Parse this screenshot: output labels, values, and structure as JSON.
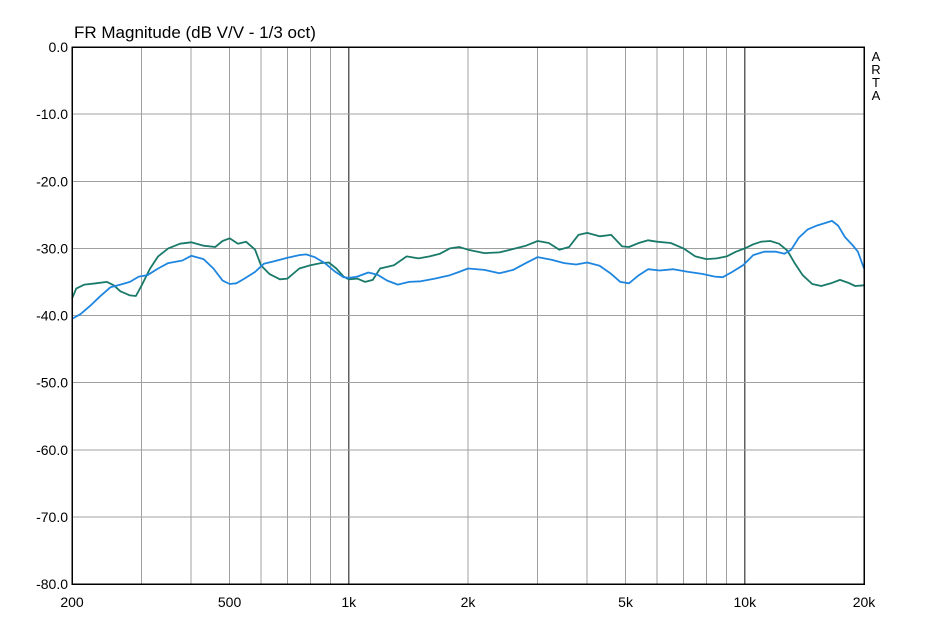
{
  "chart_data": {
    "type": "line",
    "title": "FR Magnitude (dB V/V - 1/3 oct)",
    "brand": "ARTA",
    "xscale": "log",
    "xlim": [
      200,
      20000
    ],
    "ylim": [
      -80,
      0
    ],
    "grid": true,
    "x_ticks": [
      {
        "value": 200,
        "label": "200"
      },
      {
        "value": 500,
        "label": "500"
      },
      {
        "value": 1000,
        "label": "1k"
      },
      {
        "value": 2000,
        "label": "2k"
      },
      {
        "value": 5000,
        "label": "5k"
      },
      {
        "value": 10000,
        "label": "10k"
      },
      {
        "value": 20000,
        "label": "20k"
      }
    ],
    "y_ticks": [
      {
        "value": 0,
        "label": "0.0"
      },
      {
        "value": -10,
        "label": "-10.0"
      },
      {
        "value": -20,
        "label": "-20.0"
      },
      {
        "value": -30,
        "label": "-30.0"
      },
      {
        "value": -40,
        "label": "-40.0"
      },
      {
        "value": -50,
        "label": "-50.0"
      },
      {
        "value": -60,
        "label": "-60.0"
      },
      {
        "value": -70,
        "label": "-70.0"
      },
      {
        "value": -80,
        "label": "-80.0"
      }
    ],
    "series": [
      {
        "color": "#1a7a6a",
        "points": [
          [
            200,
            -37.5
          ],
          [
            205,
            -36.0
          ],
          [
            215,
            -35.4
          ],
          [
            230,
            -35.2
          ],
          [
            245,
            -35.0
          ],
          [
            255,
            -35.5
          ],
          [
            265,
            -36.4
          ],
          [
            280,
            -37.0
          ],
          [
            290,
            -37.1
          ],
          [
            300,
            -35.5
          ],
          [
            315,
            -33.0
          ],
          [
            330,
            -31.2
          ],
          [
            350,
            -30.0
          ],
          [
            375,
            -29.3
          ],
          [
            400,
            -29.1
          ],
          [
            430,
            -29.6
          ],
          [
            460,
            -29.8
          ],
          [
            480,
            -28.9
          ],
          [
            500,
            -28.5
          ],
          [
            525,
            -29.3
          ],
          [
            550,
            -29.0
          ],
          [
            580,
            -30.2
          ],
          [
            600,
            -32.5
          ],
          [
            630,
            -33.8
          ],
          [
            670,
            -34.6
          ],
          [
            700,
            -34.5
          ],
          [
            750,
            -33.0
          ],
          [
            800,
            -32.5
          ],
          [
            850,
            -32.2
          ],
          [
            890,
            -32.1
          ],
          [
            930,
            -33.0
          ],
          [
            970,
            -34.2
          ],
          [
            1000,
            -34.6
          ],
          [
            1050,
            -34.5
          ],
          [
            1100,
            -35.0
          ],
          [
            1150,
            -34.7
          ],
          [
            1200,
            -33.0
          ],
          [
            1300,
            -32.5
          ],
          [
            1400,
            -31.2
          ],
          [
            1500,
            -31.5
          ],
          [
            1600,
            -31.2
          ],
          [
            1700,
            -30.8
          ],
          [
            1800,
            -30.0
          ],
          [
            1900,
            -29.8
          ],
          [
            2000,
            -30.2
          ],
          [
            2200,
            -30.7
          ],
          [
            2400,
            -30.6
          ],
          [
            2600,
            -30.1
          ],
          [
            2800,
            -29.6
          ],
          [
            3000,
            -28.9
          ],
          [
            3200,
            -29.2
          ],
          [
            3400,
            -30.2
          ],
          [
            3600,
            -29.8
          ],
          [
            3800,
            -28.0
          ],
          [
            4000,
            -27.7
          ],
          [
            4300,
            -28.2
          ],
          [
            4600,
            -28.0
          ],
          [
            4900,
            -29.7
          ],
          [
            5100,
            -29.8
          ],
          [
            5400,
            -29.2
          ],
          [
            5700,
            -28.8
          ],
          [
            6000,
            -29.0
          ],
          [
            6500,
            -29.2
          ],
          [
            7000,
            -30.0
          ],
          [
            7500,
            -31.2
          ],
          [
            8000,
            -31.6
          ],
          [
            8500,
            -31.5
          ],
          [
            9000,
            -31.2
          ],
          [
            9500,
            -30.5
          ],
          [
            10000,
            -30.0
          ],
          [
            10500,
            -29.4
          ],
          [
            11000,
            -29.0
          ],
          [
            11600,
            -28.9
          ],
          [
            12200,
            -29.3
          ],
          [
            12800,
            -30.3
          ],
          [
            13400,
            -32.3
          ],
          [
            14000,
            -34.0
          ],
          [
            14800,
            -35.3
          ],
          [
            15600,
            -35.6
          ],
          [
            16500,
            -35.2
          ],
          [
            17400,
            -34.7
          ],
          [
            18200,
            -35.1
          ],
          [
            19000,
            -35.6
          ],
          [
            20000,
            -35.5
          ]
        ]
      },
      {
        "color": "#1f86e0",
        "points": [
          [
            200,
            -40.5
          ],
          [
            210,
            -39.8
          ],
          [
            222,
            -38.6
          ],
          [
            235,
            -37.2
          ],
          [
            250,
            -35.8
          ],
          [
            265,
            -35.4
          ],
          [
            280,
            -35.0
          ],
          [
            295,
            -34.2
          ],
          [
            310,
            -34.0
          ],
          [
            330,
            -33.0
          ],
          [
            350,
            -32.2
          ],
          [
            380,
            -31.8
          ],
          [
            400,
            -31.1
          ],
          [
            430,
            -31.6
          ],
          [
            455,
            -33.0
          ],
          [
            480,
            -34.8
          ],
          [
            500,
            -35.3
          ],
          [
            520,
            -35.2
          ],
          [
            545,
            -34.5
          ],
          [
            580,
            -33.5
          ],
          [
            610,
            -32.3
          ],
          [
            650,
            -31.9
          ],
          [
            700,
            -31.4
          ],
          [
            750,
            -31.0
          ],
          [
            780,
            -30.9
          ],
          [
            820,
            -31.3
          ],
          [
            870,
            -32.2
          ],
          [
            920,
            -33.4
          ],
          [
            970,
            -34.3
          ],
          [
            1000,
            -34.4
          ],
          [
            1050,
            -34.2
          ],
          [
            1120,
            -33.6
          ],
          [
            1180,
            -33.9
          ],
          [
            1250,
            -34.8
          ],
          [
            1330,
            -35.4
          ],
          [
            1420,
            -35.0
          ],
          [
            1520,
            -34.9
          ],
          [
            1650,
            -34.5
          ],
          [
            1800,
            -34.0
          ],
          [
            1900,
            -33.5
          ],
          [
            2000,
            -33.0
          ],
          [
            2200,
            -33.2
          ],
          [
            2400,
            -33.7
          ],
          [
            2600,
            -33.2
          ],
          [
            2800,
            -32.2
          ],
          [
            3000,
            -31.3
          ],
          [
            3250,
            -31.7
          ],
          [
            3500,
            -32.2
          ],
          [
            3750,
            -32.4
          ],
          [
            4000,
            -32.1
          ],
          [
            4300,
            -32.6
          ],
          [
            4600,
            -33.8
          ],
          [
            4850,
            -35.0
          ],
          [
            5100,
            -35.2
          ],
          [
            5400,
            -34.0
          ],
          [
            5700,
            -33.1
          ],
          [
            6100,
            -33.3
          ],
          [
            6600,
            -33.1
          ],
          [
            7200,
            -33.5
          ],
          [
            7800,
            -33.8
          ],
          [
            8400,
            -34.2
          ],
          [
            8800,
            -34.3
          ],
          [
            9300,
            -33.5
          ],
          [
            9900,
            -32.5
          ],
          [
            10500,
            -31.0
          ],
          [
            11200,
            -30.5
          ],
          [
            12000,
            -30.5
          ],
          [
            12600,
            -30.8
          ],
          [
            13100,
            -30.2
          ],
          [
            13700,
            -28.4
          ],
          [
            14400,
            -27.2
          ],
          [
            15200,
            -26.6
          ],
          [
            16000,
            -26.2
          ],
          [
            16600,
            -25.9
          ],
          [
            17200,
            -26.6
          ],
          [
            17900,
            -28.3
          ],
          [
            18700,
            -29.5
          ],
          [
            19300,
            -30.5
          ],
          [
            20000,
            -33.0
          ]
        ]
      }
    ]
  }
}
